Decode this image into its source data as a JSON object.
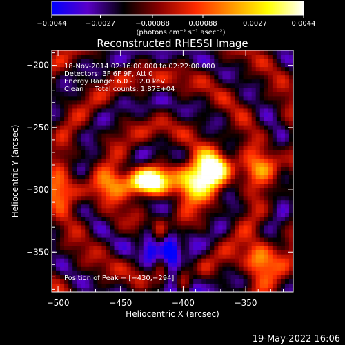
{
  "chart_data": {
    "type": "heatmap",
    "title": "Reconstructed RHESSI Image",
    "xlabel": "Heliocentric X (arcsec)",
    "ylabel": "Heliocentric Y (arcsec)",
    "xlim": [
      -505,
      -312
    ],
    "ylim": [
      -382,
      -188
    ],
    "x_ticks": [
      -500,
      -450,
      -400,
      -350
    ],
    "x_tick_labels": [
      "−500",
      "−450",
      "−400",
      "−350"
    ],
    "y_ticks": [
      -200,
      -250,
      -300,
      -350
    ],
    "y_tick_labels": [
      "−200",
      "−250",
      "−300",
      "−350"
    ],
    "colorbar": {
      "range": [
        -0.0044,
        0.0044
      ],
      "ticks": [
        -0.0044,
        -0.0027,
        -0.00088,
        0.00088,
        0.0027,
        0.0044
      ],
      "tick_labels": [
        "−0.0044",
        "−0.0027",
        "−0.00088",
        "0.00088",
        "0.0027",
        "0.0044"
      ],
      "unit_label": "(photons cm⁻² s⁻¹ asec⁻²)",
      "colormap": [
        "#0000ff",
        "#5a00c8",
        "#000000",
        "#8b0000",
        "#ff2a00",
        "#ff9600",
        "#ffff00",
        "#ffffff"
      ]
    },
    "annotations": [
      "18-Nov-2014 02:16:00.000 to 02:22:00.000",
      "Detectors: 3F 6F 9F, Att 0",
      "Energy Range: 6.0 - 12.0 keV",
      "Clean     Total counts: 1.87E+04",
      "Position of Peak = [−430,−294]"
    ],
    "peak": {
      "x": -430,
      "y": -294
    },
    "secondary_sources": [
      {
        "x": -376,
        "y": -282,
        "level": 0.85
      },
      {
        "x": -339,
        "y": -356,
        "level": 0.8
      },
      {
        "x": -395,
        "y": -298,
        "level": 0.75
      }
    ],
    "negative_regions": [
      {
        "x": -405,
        "y": -374
      },
      {
        "x": -418,
        "y": -341
      }
    ]
  },
  "footer": {
    "date": "19-May-2022 16:06"
  }
}
